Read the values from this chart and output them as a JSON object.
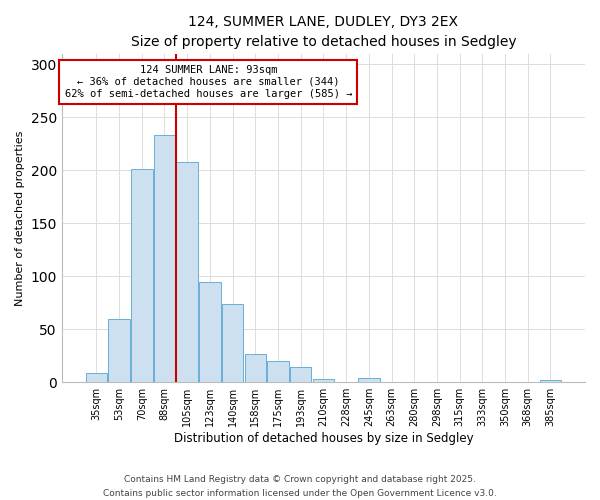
{
  "title": "124, SUMMER LANE, DUDLEY, DY3 2EX",
  "subtitle": "Size of property relative to detached houses in Sedgley",
  "xlabel": "Distribution of detached houses by size in Sedgley",
  "ylabel": "Number of detached properties",
  "categories": [
    "35sqm",
    "53sqm",
    "70sqm",
    "88sqm",
    "105sqm",
    "123sqm",
    "140sqm",
    "158sqm",
    "175sqm",
    "193sqm",
    "210sqm",
    "228sqm",
    "245sqm",
    "263sqm",
    "280sqm",
    "298sqm",
    "315sqm",
    "333sqm",
    "350sqm",
    "368sqm",
    "385sqm"
  ],
  "values": [
    9,
    60,
    201,
    233,
    208,
    95,
    74,
    27,
    20,
    14,
    3,
    0,
    4,
    0,
    0,
    0,
    0,
    0,
    0,
    0,
    2
  ],
  "bar_color": "#cce0f0",
  "bar_edge_color": "#6aaed6",
  "vline_x_index": 3,
  "vline_color": "#cc0000",
  "annotation_title": "124 SUMMER LANE: 93sqm",
  "annotation_line1": "← 36% of detached houses are smaller (344)",
  "annotation_line2": "62% of semi-detached houses are larger (585) →",
  "annotation_box_color": "#ffffff",
  "annotation_box_edge": "#cc0000",
  "ylim": [
    0,
    310
  ],
  "yticks": [
    0,
    50,
    100,
    150,
    200,
    250,
    300
  ],
  "footnote1": "Contains HM Land Registry data © Crown copyright and database right 2025.",
  "footnote2": "Contains public sector information licensed under the Open Government Licence v3.0.",
  "background_color": "#ffffff",
  "grid_color": "#dddddd",
  "title_fontsize": 10,
  "subtitle_fontsize": 9,
  "xlabel_fontsize": 8.5,
  "ylabel_fontsize": 8,
  "tick_fontsize": 7,
  "annotation_fontsize": 7.5,
  "footnote_fontsize": 6.5
}
